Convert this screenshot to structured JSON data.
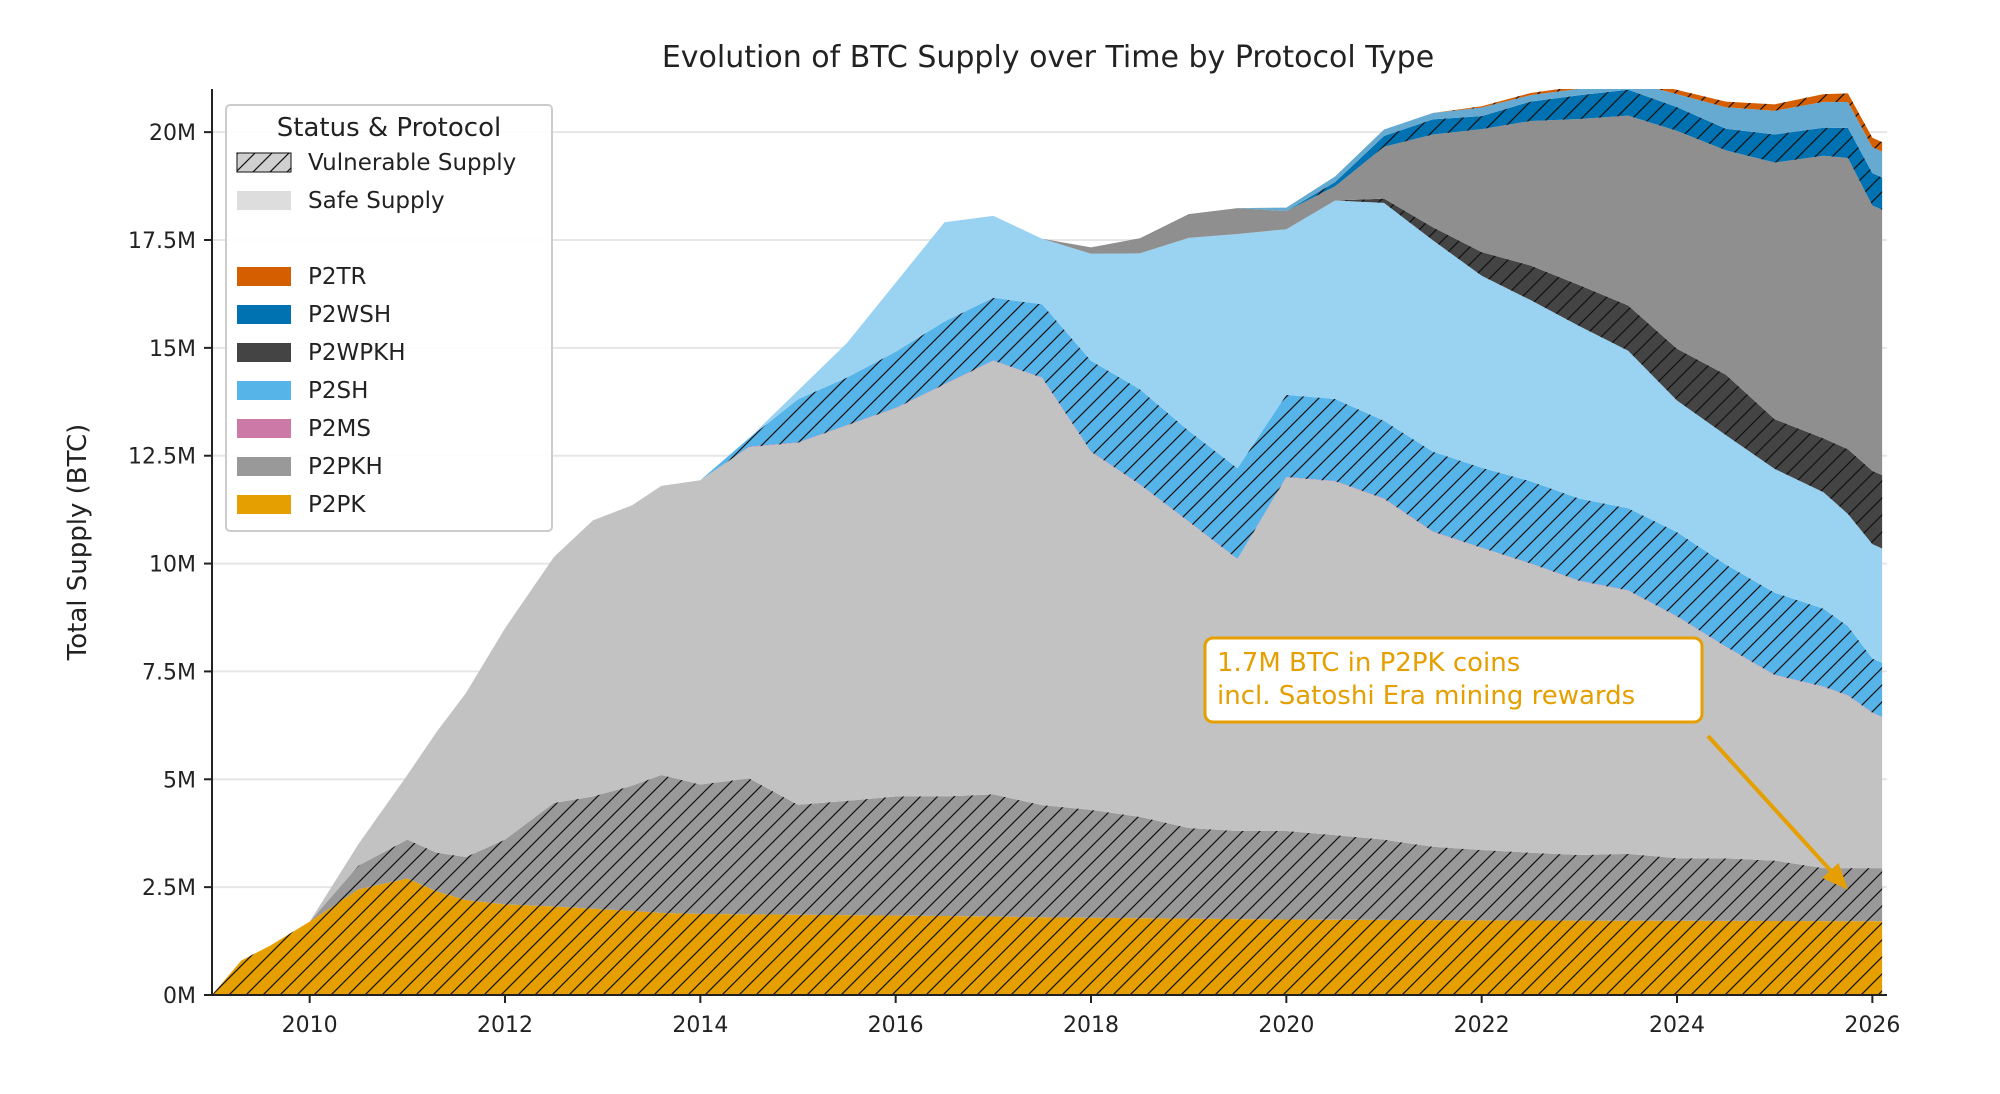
{
  "colors": {
    "P2PK": "#E69F00",
    "P2PKH": "#999999",
    "P2MS": "#CC79A7",
    "P2SH": "#56B4E9",
    "P2WPKH": "#444444",
    "P2WSH": "#0072B2",
    "P2TR": "#D55E00",
    "safe_supply_swatch": "#DDDDDD",
    "annotation": "#E69F00",
    "grid": "#E6E6E6",
    "axis": "#222222"
  },
  "chart_data": {
    "type": "area",
    "title": "Evolution of BTC Supply over Time by Protocol Type",
    "xlabel": "",
    "ylabel": "Total Supply (BTC)",
    "xlim": [
      2009.0,
      2026.15
    ],
    "ylim": [
      0,
      21000000
    ],
    "xticks": [
      2010,
      2012,
      2014,
      2016,
      2018,
      2020,
      2022,
      2024,
      2026
    ],
    "xtick_labels": [
      "2010",
      "2012",
      "2014",
      "2016",
      "2018",
      "2020",
      "2022",
      "2024",
      "2026"
    ],
    "yticks": [
      0,
      2500000,
      5000000,
      7500000,
      10000000,
      12500000,
      15000000,
      17500000,
      20000000
    ],
    "ytick_labels": [
      "0M",
      "2.5M",
      "5M",
      "7.5M",
      "10M",
      "12.5M",
      "15M",
      "17.5M",
      "20M"
    ],
    "grid": "horizontal",
    "stacking": "each protocol drawn as a vulnerable (hatched, saturated) band then a safe (solid, light) band, stacked in legend order from P2PK upward",
    "legend": {
      "title": "Status & Protocol",
      "position": "top-left",
      "status_entries": [
        "Vulnerable Supply",
        "Safe Supply"
      ],
      "protocol_entries": [
        "P2TR",
        "P2WSH",
        "P2WPKH",
        "P2SH",
        "P2MS",
        "P2PKH",
        "P2PK"
      ]
    },
    "annotation": {
      "lines": [
        "1.7M BTC in P2PK coins",
        "incl. Satoshi Era mining rewards"
      ],
      "arrow_target": {
        "x": 2025.75,
        "y": 1700000
      }
    },
    "x": [
      2009.0,
      2009.3,
      2009.6,
      2010.0,
      2010.5,
      2011.0,
      2011.3,
      2011.6,
      2012.0,
      2012.5,
      2012.9,
      2013.3,
      2013.6,
      2014.0,
      2014.5,
      2015.0,
      2015.5,
      2016.0,
      2016.5,
      2017.0,
      2017.5,
      2018.0,
      2018.5,
      2019.0,
      2019.5,
      2020.0,
      2020.5,
      2021.0,
      2021.5,
      2022.0,
      2022.5,
      2023.0,
      2023.5,
      2024.0,
      2024.5,
      2025.0,
      2025.5,
      2025.75,
      2026.0,
      2026.1
    ],
    "series": [
      {
        "name": "P2PK",
        "status": "Vulnerable Supply",
        "values": [
          0,
          800000,
          1150000,
          1700000,
          2450000,
          2700000,
          2400000,
          2200000,
          2100000,
          2050000,
          2000000,
          1950000,
          1900000,
          1880000,
          1870000,
          1860000,
          1850000,
          1840000,
          1830000,
          1820000,
          1800000,
          1790000,
          1780000,
          1770000,
          1760000,
          1750000,
          1745000,
          1740000,
          1735000,
          1730000,
          1728000,
          1725000,
          1722000,
          1720000,
          1718000,
          1715000,
          1712000,
          1710000,
          1710000,
          1710000
        ]
      },
      {
        "name": "P2PK",
        "status": "Safe Supply",
        "values": [
          0,
          0,
          0,
          0,
          0,
          0,
          0,
          0,
          0,
          0,
          0,
          0,
          0,
          0,
          0,
          0,
          0,
          0,
          0,
          0,
          0,
          0,
          0,
          0,
          0,
          0,
          0,
          0,
          0,
          0,
          0,
          0,
          0,
          0,
          0,
          0,
          0,
          0,
          0,
          0
        ]
      },
      {
        "name": "P2PKH",
        "status": "Vulnerable Supply",
        "values": [
          0,
          0,
          0,
          0,
          550000,
          900000,
          900000,
          1000000,
          1500000,
          2400000,
          2600000,
          2900000,
          3200000,
          3000000,
          3150000,
          2550000,
          2650000,
          2760000,
          2770000,
          2830000,
          2600000,
          2500000,
          2350000,
          2100000,
          2040000,
          2050000,
          1960000,
          1860000,
          1700000,
          1630000,
          1570000,
          1520000,
          1550000,
          1450000,
          1450000,
          1400000,
          1230000,
          1230000,
          1230000,
          1230000
        ]
      },
      {
        "name": "P2PKH",
        "status": "Safe Supply",
        "values": [
          0,
          0,
          0,
          0,
          500000,
          1500000,
          2800000,
          3800000,
          4900000,
          5700000,
          6400000,
          6500000,
          6700000,
          7050000,
          7680000,
          8390000,
          8700000,
          9000000,
          9550000,
          10050000,
          9900000,
          8300000,
          7700000,
          7100000,
          6300000,
          8200000,
          8200000,
          7900000,
          7300000,
          7000000,
          6700000,
          6350000,
          6100000,
          5600000,
          4900000,
          4300000,
          4200000,
          4000000,
          3600000,
          3500000
        ]
      },
      {
        "name": "P2MS",
        "status": "Vulnerable Supply",
        "values": [
          0,
          0,
          0,
          0,
          0,
          0,
          0,
          0,
          0,
          0,
          0,
          0,
          0,
          0,
          10000,
          10000,
          10000,
          10000,
          10000,
          10000,
          10000,
          10000,
          10000,
          10000,
          10000,
          10000,
          10000,
          10000,
          10000,
          10000,
          10000,
          10000,
          10000,
          10000,
          10000,
          10000,
          10000,
          10000,
          10000,
          10000
        ]
      },
      {
        "name": "P2MS",
        "status": "Safe Supply",
        "values": [
          0,
          0,
          0,
          0,
          0,
          0,
          0,
          0,
          0,
          0,
          0,
          0,
          0,
          0,
          0,
          0,
          0,
          0,
          0,
          0,
          0,
          0,
          0,
          0,
          0,
          0,
          0,
          0,
          0,
          0,
          0,
          0,
          0,
          0,
          0,
          0,
          0,
          0,
          0,
          0
        ]
      },
      {
        "name": "P2SH",
        "status": "Vulnerable Supply",
        "values": [
          0,
          0,
          0,
          0,
          0,
          0,
          0,
          0,
          0,
          0,
          0,
          0,
          0,
          0,
          200000,
          1000000,
          1100000,
          1300000,
          1450000,
          1450000,
          1700000,
          2100000,
          2200000,
          2100000,
          2100000,
          1900000,
          1900000,
          1800000,
          1850000,
          1850000,
          1900000,
          1900000,
          1900000,
          1950000,
          1900000,
          1900000,
          1800000,
          1600000,
          1250000,
          1250000
        ]
      },
      {
        "name": "P2SH",
        "status": "Safe Supply",
        "values": [
          0,
          0,
          0,
          0,
          0,
          0,
          0,
          0,
          0,
          0,
          0,
          0,
          0,
          0,
          0,
          200000,
          800000,
          1600000,
          2300000,
          1900000,
          1520000,
          2480000,
          3150000,
          4470000,
          5430000,
          3840000,
          4600000,
          5050000,
          4900000,
          4450000,
          4200000,
          4000000,
          3650000,
          3050000,
          3000000,
          2870000,
          2700000,
          2600000,
          2650000,
          2650000
        ]
      },
      {
        "name": "P2WPKH",
        "status": "Vulnerable Supply",
        "values": [
          0,
          0,
          0,
          0,
          0,
          0,
          0,
          0,
          0,
          0,
          0,
          0,
          0,
          0,
          0,
          0,
          0,
          0,
          0,
          0,
          0,
          0,
          0,
          0,
          0,
          0,
          0,
          100000,
          300000,
          550000,
          800000,
          950000,
          1050000,
          1200000,
          1400000,
          1150000,
          1250000,
          1500000,
          1700000,
          1700000
        ]
      },
      {
        "name": "P2WPKH",
        "status": "Safe Supply",
        "values": [
          0,
          0,
          0,
          0,
          0,
          0,
          0,
          0,
          0,
          0,
          0,
          0,
          0,
          0,
          0,
          0,
          0,
          0,
          0,
          0,
          0,
          150000,
          350000,
          550000,
          600000,
          420000,
          330000,
          1200000,
          2150000,
          2850000,
          3350000,
          3850000,
          4400000,
          5050000,
          5200000,
          5950000,
          6550000,
          6750000,
          6150000,
          6150000
        ]
      },
      {
        "name": "P2WSH",
        "status": "Vulnerable Supply",
        "values": [
          0,
          0,
          0,
          0,
          0,
          0,
          0,
          0,
          0,
          0,
          0,
          0,
          0,
          0,
          0,
          0,
          0,
          0,
          0,
          0,
          0,
          0,
          0,
          0,
          0,
          0,
          100000,
          250000,
          350000,
          300000,
          450000,
          550000,
          600000,
          550000,
          500000,
          650000,
          650000,
          700000,
          750000,
          750000
        ]
      },
      {
        "name": "P2WSH",
        "status": "Safe Supply",
        "values": [
          0,
          0,
          0,
          0,
          0,
          0,
          0,
          0,
          0,
          0,
          0,
          0,
          0,
          0,
          0,
          0,
          0,
          0,
          0,
          0,
          0,
          0,
          0,
          0,
          0,
          80000,
          130000,
          150000,
          150000,
          200000,
          150000,
          150000,
          200000,
          300000,
          500000,
          550000,
          600000,
          600000,
          600000,
          600000
        ]
      },
      {
        "name": "P2TR",
        "status": "Vulnerable Supply",
        "values": [
          0,
          0,
          0,
          0,
          0,
          0,
          0,
          0,
          0,
          0,
          0,
          0,
          0,
          0,
          0,
          0,
          0,
          0,
          0,
          0,
          0,
          0,
          0,
          0,
          0,
          0,
          0,
          0,
          0,
          30000,
          50000,
          60000,
          80000,
          100000,
          130000,
          150000,
          180000,
          200000,
          220000,
          220000
        ]
      },
      {
        "name": "P2TR",
        "status": "Safe Supply",
        "values": [
          0,
          0,
          0,
          0,
          0,
          0,
          0,
          0,
          0,
          0,
          0,
          0,
          0,
          0,
          0,
          0,
          0,
          0,
          0,
          0,
          0,
          0,
          0,
          0,
          0,
          0,
          0,
          0,
          0,
          0,
          0,
          0,
          0,
          0,
          0,
          0,
          0,
          0,
          0,
          0
        ]
      }
    ]
  }
}
